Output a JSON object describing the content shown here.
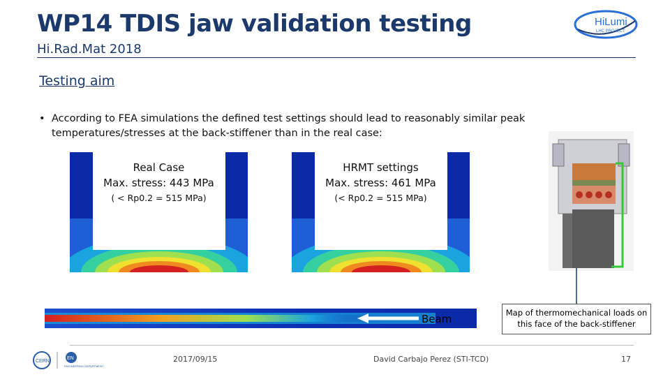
{
  "header": {
    "title": "WP14 TDIS jaw validation testing",
    "subtitle": "Hi.Rad.Mat 2018",
    "logo_text_1": "HiLumi",
    "logo_text_2": "LHC PROJECT"
  },
  "section": {
    "heading": "Testing aim"
  },
  "bullet": {
    "marker": "•",
    "text": "According to FEA simulations the defined test settings should lead to reasonably similar peak temperatures/stresses at the back-stiffener than in the real case:"
  },
  "panels": [
    {
      "title": "Real Case",
      "stress": "Max. stress: 443 MPa",
      "limit": "( < Rp0.2 = 515 MPa)"
    },
    {
      "title": "HRMT settings",
      "stress": "Max. stress: 461 MPa",
      "limit": "(< Rp0.2 = 515 MPa)"
    }
  ],
  "beam": {
    "label": "Beam"
  },
  "callout": {
    "text": "Map of thermomechanical loads on this face of the back-stiffener"
  },
  "footer": {
    "logo_left_1": "CERN",
    "logo_left_2": "EN",
    "logo_left_3": "ENGINEERING DEPARTMENT",
    "date": "2017/09/15",
    "author": "David Carbajo Perez (STI-TCD)",
    "page": "17"
  },
  "colors": {
    "title": "#1b3a6b",
    "fea_low": "#0a2aa8",
    "fea_high": "#d42020",
    "frame_green": "#37c837"
  }
}
